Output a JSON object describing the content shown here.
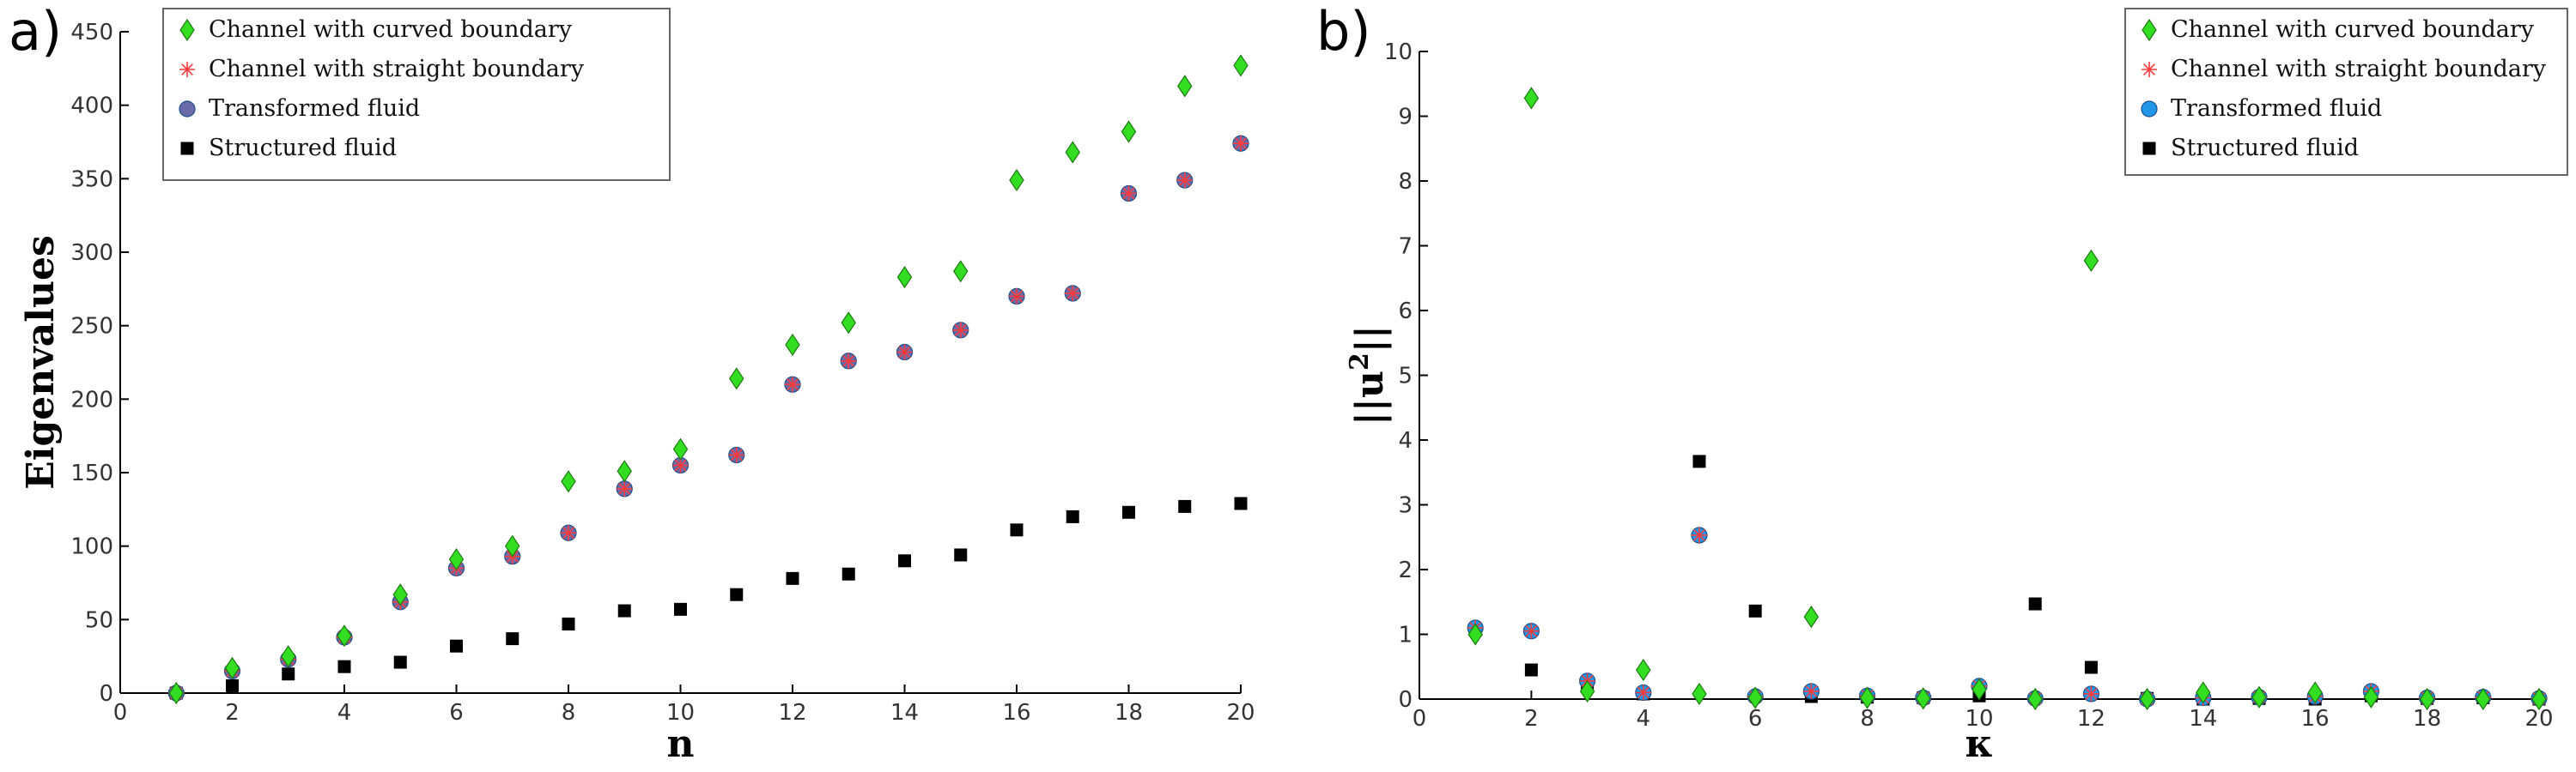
{
  "chart_data": [
    {
      "type": "scatter",
      "panel_label": "a)",
      "xlabel": "n",
      "ylabel": "Eigenvalues",
      "xlim": [
        0,
        20
      ],
      "ylim": [
        0,
        450
      ],
      "xticks": [
        0,
        2,
        4,
        6,
        8,
        10,
        12,
        14,
        16,
        18,
        20
      ],
      "yticks": [
        0,
        50,
        100,
        150,
        200,
        250,
        300,
        350,
        400,
        450
      ],
      "grid": false,
      "legend_position": "top-left",
      "x": [
        1,
        2,
        3,
        4,
        5,
        6,
        7,
        8,
        9,
        10,
        11,
        12,
        13,
        14,
        15,
        16,
        17,
        18,
        19,
        20
      ],
      "series": [
        {
          "name": "Channel with curved boundary",
          "marker": "diamond",
          "color": "#33dd22",
          "values": [
            0,
            17,
            25,
            39,
            67,
            91,
            100,
            144,
            151,
            166,
            214,
            237,
            252,
            283,
            287,
            349,
            368,
            382,
            413,
            427
          ]
        },
        {
          "name": "Channel with straight boundary",
          "marker": "asterisk",
          "color": "#ff3b3b",
          "values": [
            0,
            15,
            23,
            38,
            62,
            85,
            93,
            109,
            139,
            155,
            162,
            210,
            226,
            232,
            247,
            270,
            272,
            340,
            349,
            374
          ]
        },
        {
          "name": "Transformed fluid",
          "marker": "circle",
          "color": "#6a6aa8",
          "values": [
            0,
            15,
            23,
            38,
            62,
            85,
            93,
            109,
            139,
            155,
            162,
            210,
            226,
            232,
            247,
            270,
            272,
            340,
            349,
            374
          ]
        },
        {
          "name": "Structured fluid",
          "marker": "square",
          "color": "#000000",
          "values": [
            0,
            5,
            13,
            18,
            21,
            32,
            37,
            47,
            56,
            57,
            67,
            78,
            81,
            90,
            94,
            111,
            120,
            123,
            127,
            129
          ]
        }
      ]
    },
    {
      "type": "scatter",
      "panel_label": "b)",
      "xlabel": "κ",
      "ylabel": "||u²||",
      "ylabel_base": "||u",
      "ylabel_sup": "2",
      "ylabel_end": "||",
      "xlim": [
        0,
        20
      ],
      "ylim": [
        0,
        10
      ],
      "xticks": [
        0,
        2,
        4,
        6,
        8,
        10,
        12,
        14,
        16,
        18,
        20
      ],
      "yticks": [
        0,
        1,
        2,
        3,
        4,
        5,
        6,
        7,
        8,
        9,
        10
      ],
      "grid": false,
      "legend_position": "top-right",
      "x": [
        1,
        2,
        3,
        4,
        5,
        6,
        7,
        8,
        9,
        10,
        11,
        12,
        13,
        14,
        15,
        16,
        17,
        18,
        19,
        20
      ],
      "series": [
        {
          "name": "Channel with curved boundary",
          "marker": "diamond",
          "color": "#33dd22",
          "values": [
            1.0,
            9.28,
            0.12,
            0.45,
            0.08,
            0.02,
            1.27,
            0.02,
            0.01,
            0.15,
            0.0,
            6.77,
            0.0,
            0.1,
            0.03,
            0.1,
            0.03,
            0.0,
            0.0,
            0.0
          ]
        },
        {
          "name": "Channel with straight boundary",
          "marker": "asterisk",
          "color": "#ff3b3b",
          "values": [
            1.1,
            1.05,
            0.28,
            0.1,
            2.53,
            0.04,
            0.12,
            0.05,
            0.02,
            0.2,
            0.01,
            0.08,
            0.0,
            0.02,
            0.03,
            0.04,
            0.12,
            0.02,
            0.03,
            0.01
          ]
        },
        {
          "name": "Transformed fluid",
          "marker": "circle",
          "color": "#2196e8",
          "values": [
            1.1,
            1.05,
            0.28,
            0.1,
            2.53,
            0.04,
            0.12,
            0.05,
            0.02,
            0.2,
            0.01,
            0.08,
            0.0,
            0.02,
            0.03,
            0.04,
            0.12,
            0.02,
            0.03,
            0.01
          ]
        },
        {
          "name": "Structured fluid",
          "marker": "square",
          "color": "#000000",
          "values": [
            1.07,
            0.45,
            0.25,
            0.08,
            3.67,
            1.36,
            0.04,
            0.03,
            0.02,
            0.05,
            1.47,
            0.49,
            0.01,
            0.0,
            0.01,
            0.0,
            0.05,
            0.01,
            0.02,
            0.0
          ]
        }
      ]
    }
  ]
}
